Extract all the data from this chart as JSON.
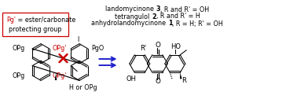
{
  "bg_color": "#ffffff",
  "arrow_color": "#2222cc",
  "red_color": "#cc0000",
  "black_color": "#000000",
  "font_size": 5.8,
  "caption_lines": [
    {
      "prefix": "anhydrolandomycinone ",
      "bold": "1",
      "suffix": ", R = H; R' = OH"
    },
    {
      "prefix": "tetrangulol ",
      "bold": "2",
      "suffix": ", R and R' = H"
    },
    {
      "prefix": "landomycinone ",
      "bold": "3",
      "suffix": ", R and R' = OH"
    }
  ]
}
